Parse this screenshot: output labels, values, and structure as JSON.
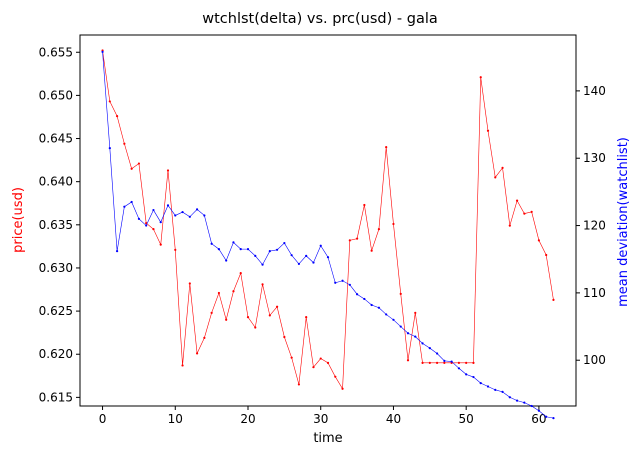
{
  "chart_data": {
    "type": "line",
    "title": "wtchlst(delta) vs. prc(usd) - gala",
    "xlabel": "time",
    "ylabel_left": "price(usd)",
    "ylabel_right": "mean deviation(watchlist)",
    "xlim": [
      -3.1,
      65.1
    ],
    "ylim_left": [
      0.614,
      0.657
    ],
    "ylim_right": [
      93.2,
      148.3
    ],
    "x_ticks": [
      0,
      10,
      20,
      30,
      40,
      50,
      60
    ],
    "y_left_ticks": [
      0.615,
      0.62,
      0.625,
      0.63,
      0.635,
      0.64,
      0.645,
      0.65,
      0.655
    ],
    "y_left_tick_labels": [
      "0.615",
      "0.620",
      "0.625",
      "0.630",
      "0.635",
      "0.640",
      "0.645",
      "0.650",
      "0.655"
    ],
    "y_right_ticks": [
      100,
      110,
      120,
      130,
      140
    ],
    "grid": false,
    "colors": {
      "left_axis": "#ff0000",
      "right_axis": "#0000ff"
    },
    "series": [
      {
        "axis": "left",
        "color": "#ff0000",
        "x": [
          0,
          1,
          2,
          3,
          4,
          5,
          6,
          7,
          8,
          9,
          10,
          11,
          12,
          13,
          14,
          15,
          16,
          17,
          18,
          19,
          20,
          21,
          22,
          23,
          24,
          25,
          26,
          27,
          28,
          29,
          30,
          31,
          32,
          33,
          34,
          35,
          36,
          37,
          38,
          39,
          40,
          41,
          42,
          43,
          44,
          45,
          46,
          47,
          48,
          49,
          50,
          51,
          52,
          53,
          54,
          55,
          56,
          57,
          58,
          59,
          60,
          61,
          62
        ],
        "y": [
          0.6552,
          0.6493,
          0.6476,
          0.6444,
          0.6415,
          0.6421,
          0.6352,
          0.6345,
          0.6327,
          0.6413,
          0.6321,
          0.6187,
          0.6282,
          0.6201,
          0.6219,
          0.6248,
          0.6271,
          0.624,
          0.6273,
          0.6294,
          0.6243,
          0.6231,
          0.6281,
          0.6245,
          0.6255,
          0.622,
          0.6196,
          0.6165,
          0.6243,
          0.6185,
          0.6195,
          0.619,
          0.6174,
          0.616,
          0.6332,
          0.6334,
          0.6373,
          0.632,
          0.6345,
          0.644,
          0.6351,
          0.627,
          0.6193,
          0.6248,
          0.619,
          0.619,
          0.619,
          0.619,
          0.619,
          0.619,
          0.619,
          0.619,
          0.6521,
          0.6459,
          0.6405,
          0.6416,
          0.6349,
          0.6378,
          0.6363,
          0.6365,
          0.6332,
          0.6315,
          0.6263
        ]
      },
      {
        "axis": "right",
        "color": "#0000ff",
        "x": [
          0,
          1,
          2,
          3,
          4,
          5,
          6,
          7,
          8,
          9,
          10,
          11,
          12,
          13,
          14,
          15,
          16,
          17,
          18,
          19,
          20,
          21,
          22,
          23,
          24,
          25,
          26,
          27,
          28,
          29,
          30,
          31,
          32,
          33,
          34,
          35,
          36,
          37,
          38,
          39,
          40,
          41,
          42,
          43,
          44,
          45,
          46,
          47,
          48,
          49,
          50,
          51,
          52,
          53,
          54,
          55,
          56,
          57,
          58,
          59,
          60,
          61,
          62
        ],
        "y": [
          145.8,
          131.5,
          116.2,
          122.8,
          123.5,
          121.0,
          120.0,
          122.3,
          120.5,
          123.0,
          121.5,
          122.0,
          121.3,
          122.4,
          121.5,
          117.3,
          116.5,
          114.8,
          117.5,
          116.5,
          116.5,
          115.5,
          114.2,
          116.2,
          116.4,
          117.4,
          115.6,
          114.3,
          115.5,
          114.5,
          117.0,
          115.3,
          111.5,
          111.8,
          111.2,
          109.8,
          109.1,
          108.2,
          107.8,
          106.8,
          106.0,
          105.0,
          104.0,
          103.5,
          102.5,
          101.8,
          101.0,
          99.9,
          99.8,
          98.8,
          97.9,
          97.5,
          96.6,
          96.1,
          95.6,
          95.3,
          94.5,
          94.0,
          93.7,
          93.2,
          92.5,
          91.6,
          91.4
        ]
      }
    ]
  }
}
